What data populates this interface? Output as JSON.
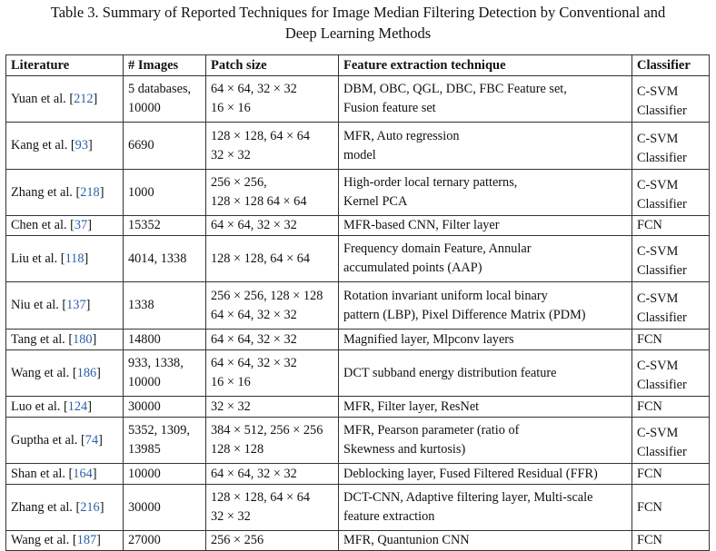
{
  "caption": {
    "line1": "Table 3.  Summary of Reported Techniques for Image Median Filtering Detection by Conventional and",
    "line2": "Deep Learning Methods"
  },
  "table": {
    "headers": [
      "Literature",
      "# Images",
      "Patch size",
      "Feature extraction technique",
      "Classifier"
    ],
    "rows": [
      {
        "author": "Yuan et al.",
        "cite": "212",
        "images": [
          "5 databases,",
          "10000"
        ],
        "patch": [
          "64 × 64, 32 × 32",
          "16 × 16"
        ],
        "feature": [
          "DBM, OBC, QGL, DBC, FBC Feature set,",
          "Fusion feature set"
        ],
        "classifier": [
          "C-SVM",
          "Classifier"
        ],
        "h": 51
      },
      {
        "author": "Kang et al.",
        "cite": "93",
        "images": [
          "6690"
        ],
        "patch": [
          "128 × 128, 64 × 64",
          "32 × 32"
        ],
        "feature": [
          "MFR, Auto regression",
          "model"
        ],
        "classifier": [
          "C-SVM",
          "Classifier"
        ],
        "h": 52
      },
      {
        "author": "Zhang et al.",
        "cite": "218",
        "images": [
          "1000"
        ],
        "patch": [
          "256 × 256,",
          "128 × 128 64 × 64"
        ],
        "feature": [
          "High-order local ternary patterns,",
          "Kernel PCA"
        ],
        "classifier": [
          "C-SVM",
          "Classifier"
        ],
        "h": 51
      },
      {
        "author": "Chen et al.",
        "cite": "37",
        "images": [
          "15352"
        ],
        "patch": [
          "64 × 64, 32 × 32"
        ],
        "feature": [
          "MFR-based CNN, Filter layer"
        ],
        "classifier": [
          "FCN"
        ],
        "h": 22
      },
      {
        "author": "Liu et al.",
        "cite": "118",
        "images": [
          "4014, 1338"
        ],
        "patch": [
          "128 × 128, 64 × 64"
        ],
        "feature": [
          "Frequency domain Feature, Annular",
          "accumulated points (AAP)"
        ],
        "classifier": [
          "C-SVM",
          "Classifier"
        ],
        "h": 51
      },
      {
        "author": "Niu et al.",
        "cite": "137",
        "images": [
          "1338"
        ],
        "patch": [
          "256 × 256, 128 × 128",
          "64 × 64, 32 × 32"
        ],
        "feature": [
          "Rotation invariant uniform local binary",
          "pattern (LBP), Pixel Difference Matrix (PDM)"
        ],
        "classifier": [
          "C-SVM",
          "Classifier"
        ],
        "h": 52
      },
      {
        "author": "Tang et al.",
        "cite": "180",
        "images": [
          "14800"
        ],
        "patch": [
          "64 × 64, 32 × 32"
        ],
        "feature": [
          "Magnified layer, Mlpconv layers"
        ],
        "classifier": [
          "FCN"
        ],
        "h": 23
      },
      {
        "author": "Wang et al.",
        "cite": "186",
        "images": [
          "933, 1338,",
          "10000"
        ],
        "patch": [
          "64 × 64, 32 × 32",
          "16 × 16"
        ],
        "feature": [
          "DCT subband energy distribution feature"
        ],
        "classifier": [
          "C-SVM",
          "Classifier"
        ],
        "h": 51
      },
      {
        "author": "Luo et al.",
        "cite": "124",
        "images": [
          "30000"
        ],
        "patch": [
          "32 × 32"
        ],
        "feature": [
          "MFR, Filter layer, ResNet"
        ],
        "classifier": [
          "FCN"
        ],
        "h": 23
      },
      {
        "author": "Guptha et al.",
        "cite": "74",
        "images": [
          "5352, 1309,",
          "13985"
        ],
        "patch": [
          "384 × 512, 256 × 256",
          "128 × 128"
        ],
        "feature": [
          "MFR, Pearson parameter (ratio of",
          "Skewness and kurtosis)"
        ],
        "classifier": [
          "C-SVM",
          "Classifier"
        ],
        "h": 51
      },
      {
        "author": "Shan et al.",
        "cite": "164",
        "images": [
          "10000"
        ],
        "patch": [
          "64 × 64, 32 × 32"
        ],
        "feature": [
          "Deblocking layer, Fused Filtered Residual (FFR)"
        ],
        "classifier": [
          "FCN"
        ],
        "h": 23
      },
      {
        "author": "Zhang et al.",
        "cite": "216",
        "images": [
          "30000"
        ],
        "patch": [
          "128 × 128, 64 × 64",
          "32 × 32"
        ],
        "feature": [
          "DCT-CNN, Adaptive filtering layer, Multi-scale",
          "feature extraction"
        ],
        "classifier": [
          "FCN"
        ],
        "h": 51
      },
      {
        "author": "Wang et al.",
        "cite": "187",
        "images": [
          "27000"
        ],
        "patch": [
          "256 × 256"
        ],
        "feature": [
          "MFR, Quantunion CNN"
        ],
        "classifier": [
          "FCN"
        ],
        "h": 20
      }
    ]
  },
  "colors": {
    "citation": "#2b5fa8",
    "border": "#333333"
  }
}
